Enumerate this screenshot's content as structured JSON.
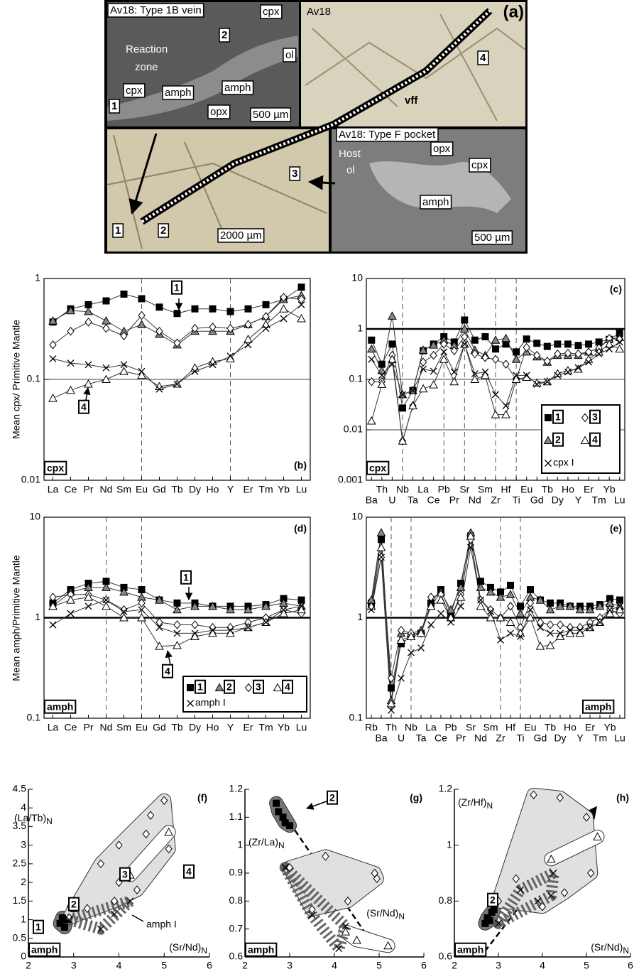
{
  "image_panel": {
    "title": "(a)",
    "labels": [
      "Av18: Type 1B vein",
      "cpx",
      "2",
      "Reaction",
      "zone",
      "ol",
      "cpx",
      "amph",
      "amph",
      "opx",
      "1",
      "500 µm",
      "Av18",
      "vff",
      "4",
      "Av18: Type F pocket",
      "Host",
      "ol",
      "opx",
      "cpx",
      "3",
      "amph",
      "500 µm",
      "1",
      "2",
      "2000 µm"
    ]
  },
  "chart_data": [
    {
      "type": "line",
      "title": "(b)",
      "ylabel": "Mean cpx/ Primitive Mantle",
      "mineral": "cpx",
      "log_y": true,
      "ylim": [
        0.01,
        1
      ],
      "yticks": [
        0.01,
        0.1,
        1
      ],
      "categories": [
        "La",
        "Ce",
        "Pr",
        "Nd",
        "Sm",
        "Eu",
        "Gd",
        "Tb",
        "Dy",
        "Ho",
        "Y",
        "Er",
        "Tm",
        "Yb",
        "Lu"
      ],
      "vlines": [
        "Eu",
        "Y"
      ],
      "hlines": [
        {
          "value": 0.1
        }
      ],
      "series": [
        {
          "name": "1",
          "marker": "square",
          "color": "#000",
          "values": [
            0.37,
            0.5,
            0.55,
            0.6,
            0.7,
            0.63,
            0.52,
            0.45,
            0.5,
            0.5,
            0.47,
            0.5,
            0.55,
            0.62,
            0.82
          ]
        },
        {
          "marker": "triangle",
          "color": "#888",
          "values": [
            0.38,
            0.48,
            0.47,
            0.38,
            0.3,
            0.35,
            0.28,
            0.22,
            0.3,
            0.3,
            0.3,
            0.35,
            0.42,
            0.62,
            0.68
          ]
        },
        {
          "marker": "diamond",
          "color": "#fff",
          "values": [
            0.22,
            0.3,
            0.37,
            0.32,
            0.27,
            0.43,
            0.3,
            0.23,
            0.32,
            0.33,
            0.32,
            0.35,
            0.42,
            0.65,
            0.62
          ]
        },
        {
          "name": "4",
          "marker": "triangle",
          "color": "#fff",
          "values": [
            0.065,
            0.078,
            0.09,
            0.1,
            0.12,
            0.11,
            0.085,
            0.09,
            0.13,
            0.15,
            0.16,
            0.25,
            0.35,
            0.5,
            0.4
          ]
        },
        {
          "marker": "x",
          "color": "#000",
          "values": [
            0.16,
            0.145,
            0.14,
            0.13,
            0.14,
            0.12,
            0.08,
            0.09,
            0.12,
            0.14,
            0.17,
            0.22,
            0.32,
            0.4,
            0.55
          ]
        }
      ]
    },
    {
      "type": "line",
      "title": "(c)",
      "mineral": "cpx",
      "log_y": true,
      "ylim": [
        0.001,
        10
      ],
      "yticks": [
        0.001,
        0.01,
        0.1,
        1,
        10
      ],
      "legend": "lower right",
      "categories": [
        "Ba",
        "Th",
        "U",
        "Nb",
        "Ta",
        "La",
        "Ce",
        "Pb",
        "Pr",
        "Sr",
        "Nd",
        "Sm",
        "Zr",
        "Hf",
        "Ti",
        "Eu",
        "Gd",
        "Tb",
        "Dy",
        "Ho",
        "Y",
        "Er",
        "Tm",
        "Yb",
        "Lu"
      ],
      "vlines": [
        "Nb",
        "Pb",
        "Sr",
        "Zr",
        "Ti"
      ],
      "hlines": [
        {
          "value": 1,
          "bold": true
        },
        {
          "value": 0.1
        },
        {
          "value": 0.01
        }
      ],
      "series": [
        {
          "name": "1",
          "marker": "square",
          "color": "#000",
          "values": [
            0.6,
            0.2,
            0.5,
            0.027,
            0.06,
            0.37,
            0.5,
            0.7,
            0.55,
            1.5,
            0.6,
            0.7,
            0.4,
            0.5,
            0.35,
            0.63,
            0.52,
            0.45,
            0.5,
            0.5,
            0.47,
            0.5,
            0.55,
            0.62,
            0.82
          ]
        },
        {
          "name": "2",
          "marker": "triangle",
          "color": "#888",
          "values": [
            0.4,
            0.15,
            1.8,
            0.05,
            0.06,
            0.38,
            0.48,
            0.6,
            0.47,
            1.0,
            0.38,
            0.3,
            0.6,
            0.65,
            0.25,
            0.35,
            0.28,
            0.22,
            0.3,
            0.3,
            0.3,
            0.35,
            0.42,
            0.62,
            0.68
          ]
        },
        {
          "name": "3",
          "marker": "diamond",
          "color": "#fff",
          "values": [
            0.09,
            0.09,
            0.3,
            0.006,
            0.03,
            0.22,
            0.3,
            0.5,
            0.37,
            0.7,
            0.32,
            0.27,
            0.25,
            0.2,
            0.1,
            0.43,
            0.3,
            0.23,
            0.32,
            0.33,
            0.32,
            0.35,
            0.42,
            0.65,
            0.62
          ]
        },
        {
          "name": "4",
          "marker": "triangle",
          "color": "#fff",
          "values": [
            0.015,
            0.08,
            0.25,
            0.006,
            0.03,
            0.065,
            0.078,
            0.25,
            0.09,
            0.5,
            0.1,
            0.12,
            0.02,
            0.02,
            0.1,
            0.11,
            0.085,
            0.09,
            0.13,
            0.15,
            0.16,
            0.25,
            0.35,
            0.5,
            0.4
          ]
        },
        {
          "name": "cpx I",
          "marker": "x",
          "color": "#000",
          "values": [
            0.25,
            0.12,
            0.2,
            0.05,
            0.06,
            0.16,
            0.145,
            0.35,
            0.14,
            0.5,
            0.13,
            0.14,
            0.05,
            0.03,
            0.12,
            0.12,
            0.08,
            0.09,
            0.12,
            0.14,
            0.17,
            0.22,
            0.32,
            0.4,
            0.55
          ]
        }
      ]
    },
    {
      "type": "line",
      "title": "(d)",
      "ylabel": "Mean amph/Primitive Mantle",
      "mineral": "amph",
      "log_y": true,
      "ylim": [
        0.1,
        10
      ],
      "yticks": [
        0.1,
        1,
        10
      ],
      "legend": "lower right",
      "categories": [
        "La",
        "Ce",
        "Pr",
        "Nd",
        "Sm",
        "Eu",
        "Gd",
        "Tb",
        "Dy",
        "Ho",
        "Y",
        "Er",
        "Tm",
        "Yb",
        "Lu"
      ],
      "vlines": [
        "Nd",
        "Eu"
      ],
      "hlines": [
        {
          "value": 1,
          "bold": true
        }
      ],
      "series": [
        {
          "name": "1",
          "marker": "square",
          "color": "#000",
          "values": [
            1.4,
            1.9,
            2.2,
            2.3,
            2.0,
            1.9,
            1.5,
            1.4,
            1.4,
            1.3,
            1.3,
            1.3,
            1.35,
            1.55,
            1.5
          ]
        },
        {
          "name": "2",
          "marker": "triangle",
          "color": "#888",
          "values": [
            1.3,
            1.8,
            2.0,
            2.0,
            1.8,
            1.6,
            1.5,
            1.2,
            1.3,
            1.3,
            1.2,
            1.2,
            1.3,
            1.4,
            1.3
          ]
        },
        {
          "name": "3",
          "marker": "diamond",
          "color": "#fff",
          "values": [
            1.6,
            1.7,
            1.7,
            1.5,
            1.2,
            1.4,
            0.9,
            0.85,
            0.85,
            0.8,
            0.8,
            0.9,
            1.0,
            1.2,
            1.1
          ]
        },
        {
          "name": "4",
          "marker": "triangle",
          "color": "#fff",
          "values": [
            1.3,
            1.5,
            1.6,
            1.3,
            1.0,
            1.0,
            0.52,
            0.53,
            0.65,
            0.7,
            0.7,
            0.8,
            0.9,
            1.1,
            1.2
          ]
        },
        {
          "name": "amph I",
          "marker": "x",
          "color": "#000",
          "values": [
            0.85,
            1.1,
            1.3,
            1.5,
            1.15,
            1.2,
            0.8,
            0.7,
            0.7,
            0.75,
            0.75,
            0.8,
            0.9,
            1.2,
            1.3
          ]
        }
      ]
    },
    {
      "type": "line",
      "title": "(e)",
      "mineral": "amph",
      "log_y": true,
      "ylim": [
        0.1,
        10
      ],
      "yticks": [
        0.1,
        1,
        10
      ],
      "categories": [
        "Rb",
        "Ba",
        "Th",
        "U",
        "Nb",
        "Ta",
        "La",
        "Ce",
        "Pb",
        "Pr",
        "Sr",
        "Nd",
        "Sm",
        "Zr",
        "Hf",
        "Ti",
        "Eu",
        "Gd",
        "Tb",
        "Dy",
        "Ho",
        "Y",
        "Er",
        "Tm",
        "Yb",
        "Lu"
      ],
      "vlines": [
        "Th",
        "Nb",
        "Zr",
        "Ti"
      ],
      "hlines": [
        {
          "value": 1,
          "bold": true
        }
      ],
      "series": [
        {
          "marker": "square",
          "color": "#000",
          "values": [
            1.4,
            6,
            0.2,
            0.55,
            0.65,
            0.7,
            1.4,
            1.9,
            1.1,
            2.2,
            6.5,
            2.3,
            2.0,
            1.8,
            2.1,
            1.3,
            1.9,
            1.5,
            1.4,
            1.4,
            1.3,
            1.3,
            1.3,
            1.35,
            1.55,
            1.5
          ]
        },
        {
          "marker": "triangle",
          "color": "#888",
          "values": [
            1.5,
            7,
            0.15,
            0.7,
            0.7,
            0.75,
            1.3,
            1.8,
            1.2,
            2.0,
            7,
            2.0,
            1.8,
            1.6,
            1.7,
            1.1,
            1.6,
            1.5,
            1.2,
            1.3,
            1.3,
            1.2,
            1.2,
            1.3,
            1.4,
            1.3
          ]
        },
        {
          "marker": "diamond",
          "color": "#fff",
          "values": [
            1.3,
            4,
            0.25,
            0.75,
            0.7,
            0.7,
            1.6,
            1.7,
            1.0,
            1.7,
            6,
            1.5,
            1.2,
            1.0,
            1.3,
            0.8,
            1.4,
            0.9,
            0.85,
            0.85,
            0.8,
            0.8,
            0.9,
            1.0,
            1.2,
            1.1
          ]
        },
        {
          "marker": "triangle",
          "color": "#fff",
          "values": [
            1.3,
            5,
            0.14,
            0.6,
            0.65,
            0.7,
            1.3,
            1.5,
            1.0,
            1.6,
            6.5,
            1.3,
            1.0,
            1.0,
            0.9,
            0.7,
            1.0,
            0.52,
            0.53,
            0.65,
            0.7,
            0.7,
            0.8,
            0.9,
            1.1,
            1.2
          ]
        },
        {
          "marker": "x",
          "color": "#000",
          "values": [
            1.2,
            4,
            0.12,
            0.25,
            0.45,
            0.5,
            0.85,
            1.1,
            0.9,
            1.3,
            5,
            1.5,
            1.15,
            0.6,
            0.7,
            0.65,
            1.2,
            0.8,
            0.7,
            0.7,
            0.75,
            0.75,
            0.8,
            0.9,
            1.2,
            1.3
          ]
        }
      ]
    },
    {
      "type": "scatter",
      "title": "(f)",
      "mineral": "amph",
      "xlabel": "(Sr/Nd)",
      "xlabel_sub": "N",
      "ylabel": "(La/Tb)",
      "ylabel_sub": "N",
      "xlim": [
        2,
        6
      ],
      "xticks": [
        2,
        3,
        4,
        5,
        6
      ],
      "ylim": [
        0,
        4.5
      ],
      "yticks": [
        0,
        0.5,
        1,
        1.5,
        2,
        2.5,
        3,
        3.5,
        4,
        4.5
      ],
      "series": [
        {
          "name": "1",
          "marker": "square",
          "color": "#000",
          "field": "#777",
          "x": [
            2.7,
            2.75,
            2.8,
            2.85
          ],
          "y": [
            0.9,
            1.05,
            0.8,
            1.0
          ]
        },
        {
          "name": "2",
          "marker": "square",
          "color": "#000",
          "field": "#777",
          "x": [
            3.0
          ],
          "y": [
            1.3
          ]
        },
        {
          "name": "3",
          "marker": "diamond",
          "color": "#fff",
          "field": "#e0e0e0",
          "x": [
            2.9,
            3.3,
            3.6,
            3.9,
            4.0,
            4.0,
            4.4,
            4.6,
            4.7,
            5.0,
            5.1
          ],
          "y": [
            1.05,
            1.3,
            2.5,
            1.5,
            3.0,
            2.0,
            1.8,
            3.3,
            3.8,
            4.2,
            2.9
          ]
        },
        {
          "name": "4",
          "marker": "triangle",
          "color": "#fff",
          "field": "#fff",
          "x": [
            4.25,
            5.1
          ],
          "y": [
            2.2,
            3.35
          ]
        },
        {
          "name": "amph I",
          "marker": "x",
          "color": "#000",
          "field": "none",
          "x": [
            2.9,
            3.6,
            3.9,
            4.25
          ],
          "y": [
            1.0,
            0.75,
            1.15,
            1.5
          ]
        }
      ]
    },
    {
      "type": "scatter",
      "title": "(g)",
      "mineral": "amph",
      "xlabel": "(Sr/Nd)",
      "xlabel_sub": "N",
      "ylabel": "(Zr/La)",
      "ylabel_sub": "N",
      "xlim": [
        2,
        6
      ],
      "xticks": [
        2,
        3,
        4,
        5,
        6
      ],
      "ylim": [
        0.6,
        1.2
      ],
      "yticks": [
        0.6,
        0.7,
        0.8,
        0.9,
        1,
        1.1,
        1.2
      ],
      "series": [
        {
          "name": "2",
          "marker": "square",
          "color": "#000",
          "field": "#777",
          "x": [
            2.7,
            2.75,
            2.85,
            2.9,
            3.0
          ],
          "y": [
            1.15,
            1.12,
            1.1,
            1.08,
            1.07
          ]
        },
        {
          "marker": "diamond",
          "color": "#fff",
          "field": "#e0e0e0",
          "x": [
            3.0,
            3.5,
            3.8,
            4.3,
            4.9,
            4.95
          ],
          "y": [
            0.92,
            0.77,
            0.96,
            0.8,
            0.9,
            0.88
          ]
        },
        {
          "marker": "triangle",
          "color": "#fff",
          "field": "#fff",
          "x": [
            4.25,
            4.5,
            5.2
          ],
          "y": [
            0.69,
            0.66,
            0.64
          ]
        },
        {
          "marker": "x",
          "color": "#000",
          "field": "none",
          "x": [
            2.9,
            3.5,
            4.1,
            4.25
          ],
          "y": [
            0.92,
            0.75,
            0.63,
            0.71
          ]
        }
      ]
    },
    {
      "type": "scatter",
      "title": "(h)",
      "mineral": "amph",
      "xlabel": "(Sr/Nd)",
      "xlabel_sub": "N",
      "ylabel": "(Zr/Hf)",
      "ylabel_sub": "N",
      "xlim": [
        2,
        6
      ],
      "xticks": [
        2,
        3,
        4,
        5,
        6
      ],
      "ylim": [
        0.6,
        1.2
      ],
      "yticks": [
        0.6,
        0.8,
        1,
        1.2
      ],
      "series": [
        {
          "name": "2",
          "marker": "square",
          "color": "#000",
          "field": "#777",
          "x": [
            2.7,
            2.75,
            2.8,
            2.85,
            2.9
          ],
          "y": [
            0.72,
            0.74,
            0.73,
            0.76,
            0.77
          ]
        },
        {
          "marker": "diamond",
          "color": "#fff",
          "field": "#e0e0e0",
          "x": [
            3.0,
            3.4,
            3.8,
            4.0,
            4.4,
            4.5,
            5.0,
            5.1
          ],
          "y": [
            0.8,
            0.88,
            1.18,
            0.78,
            1.17,
            0.83,
            1.1,
            0.9
          ]
        },
        {
          "marker": "triangle",
          "color": "#fff",
          "field": "#fff",
          "x": [
            4.2,
            5.25
          ],
          "y": [
            0.95,
            1.03
          ]
        },
        {
          "marker": "x",
          "color": "#000",
          "field": "none",
          "x": [
            3.0,
            3.5,
            3.9,
            4.2,
            4.25
          ],
          "y": [
            0.72,
            0.84,
            0.8,
            0.82,
            0.9
          ]
        }
      ]
    }
  ]
}
